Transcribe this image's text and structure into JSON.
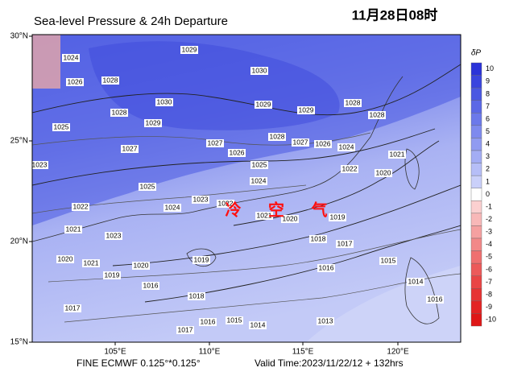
{
  "header": {
    "title": "Sea-level Pressure & 24h Departure",
    "date": "11月28日08时"
  },
  "map": {
    "lat_labels": [
      "30°N",
      "25°N",
      "20°N",
      "15°N"
    ],
    "lon_labels": [
      "105°E",
      "110°E",
      "115°E",
      "120°E"
    ],
    "annotation": "冷 空 气",
    "contour_labels": [
      1029,
      1024,
      1026,
      1028,
      1030,
      1030,
      1029,
      1029,
      1028,
      1028,
      1025,
      1029,
      1028,
      1027,
      1027,
      1026,
      1028,
      1027,
      1026,
      1024,
      1021,
      1025,
      1022,
      1020,
      1024,
      1023,
      1023,
      1025,
      1024,
      1022,
      1022,
      1021,
      1020,
      1019,
      1023,
      1021,
      1018,
      1017,
      1020,
      1021,
      1020,
      1019,
      1016,
      1015,
      1019,
      1018,
      1016,
      1017,
      1017,
      1016,
      1015,
      1014,
      1013,
      1014,
      1016
    ]
  },
  "colorbar": {
    "title": "δP",
    "ticks": [
      10,
      9,
      8,
      7,
      6,
      5,
      4,
      3,
      2,
      1,
      0,
      -1,
      -2,
      -3,
      -4,
      -5,
      -6,
      -7,
      -8,
      -9,
      -10
    ],
    "colors": [
      "#2b33d8",
      "#3a45de",
      "#4a57e2",
      "#5b68e6",
      "#6c79ea",
      "#7e8aee",
      "#909bf1",
      "#a3adf4",
      "#b6bef7",
      "#cad0fa",
      "#ffffff",
      "#fbd0d0",
      "#f8b8b8",
      "#f5a0a0",
      "#f28888",
      "#ef7070",
      "#ec5a5a",
      "#e94545",
      "#e63333",
      "#e32424",
      "#df1717"
    ]
  },
  "footer": {
    "source": "FINE ECMWF 0.125°*0.125°",
    "valid": "Valid Time:2023/11/22/12 + 132hrs"
  }
}
